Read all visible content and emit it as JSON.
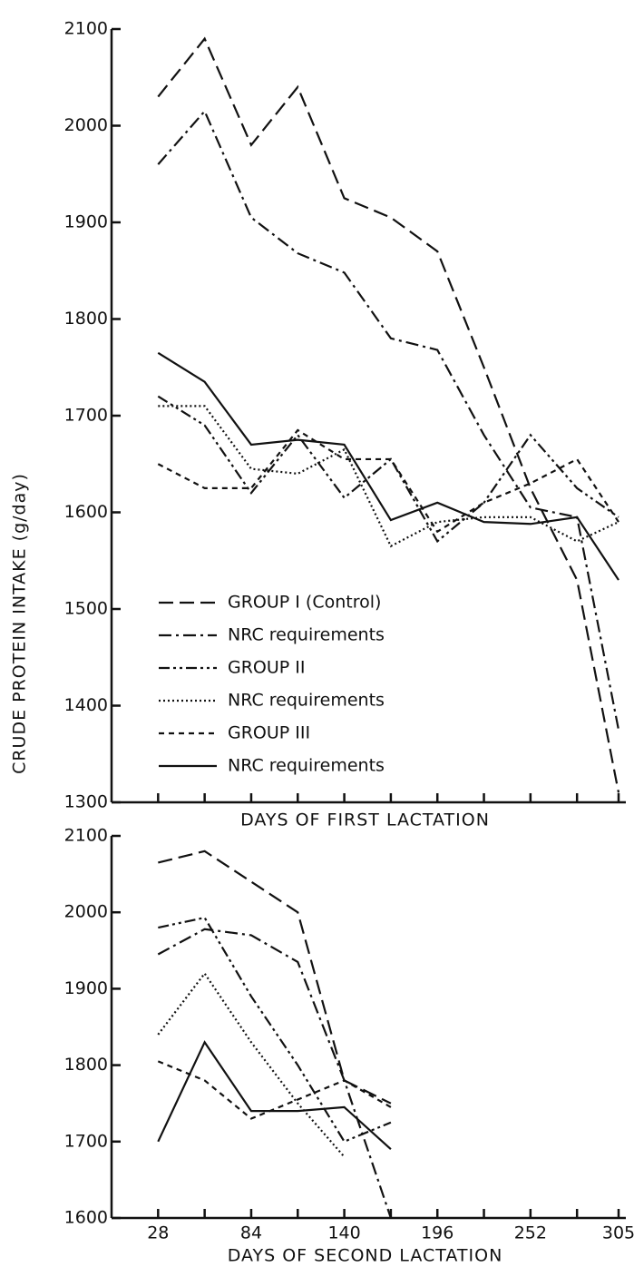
{
  "chart_data": [
    {
      "type": "line",
      "ylabel": "CRUDE PROTEIN INTAKE (g/day)",
      "xlabel": "DAYS OF FIRST LACTATION",
      "x": [
        28,
        56,
        84,
        112,
        140,
        168,
        196,
        224,
        252,
        280,
        305
      ],
      "xlim": [
        0,
        305
      ],
      "xtickmarks": [
        28,
        56,
        84,
        112,
        140,
        168,
        196,
        224,
        252,
        280,
        305
      ],
      "ylim": [
        1300,
        2100
      ],
      "yticks": [
        1300,
        1400,
        1500,
        1600,
        1700,
        1800,
        1900,
        2000,
        2100
      ],
      "legend": "lower left",
      "series": [
        {
          "name": "GROUP I (Control)",
          "color": "#111111",
          "dash": [
            16,
            7
          ],
          "values": [
            2030,
            2090,
            1980,
            2040,
            1925,
            1905,
            1870,
            1750,
            1625,
            1530,
            1310
          ]
        },
        {
          "name": "NRC requirements",
          "color": "#111111",
          "dash": [
            14,
            5,
            3,
            5
          ],
          "values": [
            1960,
            2015,
            1905,
            1868,
            1848,
            1780,
            1768,
            1680,
            1605,
            1595,
            1375
          ]
        },
        {
          "name": "GROUP II",
          "color": "#111111",
          "dash": [
            12,
            4,
            3,
            4,
            3,
            4
          ],
          "values": [
            1720,
            1690,
            1620,
            1680,
            1615,
            1655,
            1570,
            1610,
            1680,
            1625,
            1595
          ]
        },
        {
          "name": "NRC requirements",
          "color": "#111111",
          "dash": [
            2,
            3
          ],
          "values": [
            1710,
            1710,
            1645,
            1640,
            1665,
            1565,
            1590,
            1595,
            1595,
            1570,
            1590
          ]
        },
        {
          "name": "GROUP III",
          "color": "#111111",
          "dash": [
            6,
            5
          ],
          "values": [
            1650,
            1625,
            1625,
            1685,
            1655,
            1655,
            1580,
            1610,
            1630,
            1655,
            1590
          ]
        },
        {
          "name": "NRC requirements",
          "color": "#111111",
          "dash": [],
          "values": [
            1765,
            1735,
            1670,
            1675,
            1670,
            1592,
            1610,
            1590,
            1588,
            1595,
            1530
          ]
        }
      ]
    },
    {
      "type": "line",
      "xlabel": "DAYS OF SECOND LACTATION",
      "x": [
        28,
        56,
        84,
        112,
        140,
        168
      ],
      "xlim": [
        0,
        305
      ],
      "xticks": [
        28,
        84,
        140,
        196,
        252,
        305
      ],
      "xtickmarks": [
        56,
        112,
        168,
        224,
        280
      ],
      "ylim": [
        1600,
        2100
      ],
      "yticks": [
        1600,
        1700,
        1800,
        1900,
        2000,
        2100
      ],
      "series": [
        {
          "color": "#111111",
          "dash": [
            16,
            7
          ],
          "values": [
            2065,
            2080,
            2040,
            2000,
            1780,
            1750
          ]
        },
        {
          "color": "#111111",
          "dash": [
            14,
            5,
            3,
            5
          ],
          "values": [
            1945,
            1978,
            1970,
            1935,
            1780,
            1600
          ]
        },
        {
          "color": "#111111",
          "dash": [
            12,
            4,
            3,
            4,
            3,
            4
          ],
          "values": [
            1980,
            1993,
            1890,
            1800,
            1700,
            1725
          ]
        },
        {
          "color": "#111111",
          "dash": [
            2,
            3
          ],
          "values": [
            1840,
            1920,
            1830,
            1750,
            1680,
            null
          ]
        },
        {
          "color": "#111111",
          "dash": [
            6,
            5
          ],
          "values": [
            1805,
            1780,
            1730,
            1755,
            1780,
            1745
          ]
        },
        {
          "color": "#111111",
          "dash": [],
          "values": [
            1700,
            1830,
            1740,
            1740,
            1745,
            1690
          ]
        }
      ]
    }
  ]
}
